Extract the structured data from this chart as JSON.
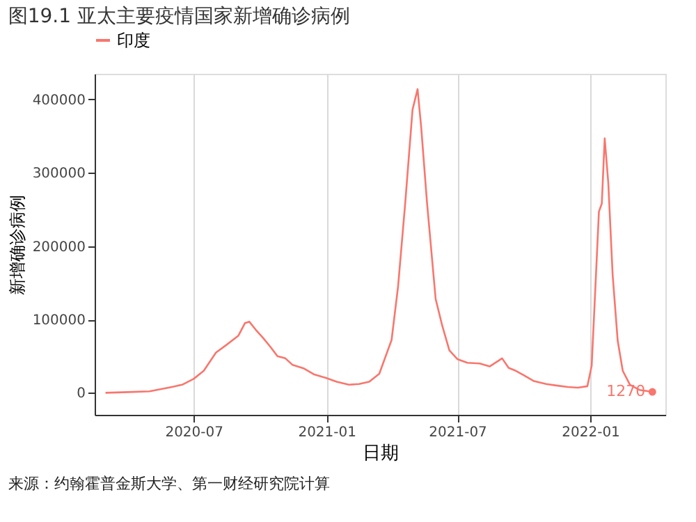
{
  "chart_data": {
    "type": "line",
    "title": "图19.1 亚太主要疫情国家新增确诊病例",
    "xlabel": "日期",
    "ylabel": "新增确诊病例",
    "x": [
      "2020-03-01",
      "2020-04-01",
      "2020-05-01",
      "2020-06-01",
      "2020-06-15",
      "2020-07-01",
      "2020-07-15",
      "2020-08-01",
      "2020-08-15",
      "2020-09-01",
      "2020-09-10",
      "2020-09-16",
      "2020-09-25",
      "2020-10-05",
      "2020-10-15",
      "2020-10-25",
      "2020-11-05",
      "2020-11-15",
      "2020-12-01",
      "2020-12-15",
      "2021-01-01",
      "2021-01-15",
      "2021-02-01",
      "2021-02-15",
      "2021-03-01",
      "2021-03-15",
      "2021-04-01",
      "2021-04-10",
      "2021-04-20",
      "2021-04-30",
      "2021-05-07",
      "2021-05-12",
      "2021-05-20",
      "2021-06-01",
      "2021-06-10",
      "2021-06-20",
      "2021-07-01",
      "2021-07-15",
      "2021-08-01",
      "2021-08-15",
      "2021-09-01",
      "2021-09-10",
      "2021-09-20",
      "2021-10-01",
      "2021-10-15",
      "2021-11-01",
      "2021-11-15",
      "2021-12-01",
      "2021-12-15",
      "2021-12-28",
      "2022-01-03",
      "2022-01-08",
      "2022-01-13",
      "2022-01-17",
      "2022-01-21",
      "2022-01-26",
      "2022-02-01",
      "2022-02-08",
      "2022-02-15",
      "2022-02-25",
      "2022-03-10",
      "2022-03-28"
    ],
    "series": [
      {
        "name": "印度",
        "color": "#f8766d",
        "values": [
          0,
          1000,
          2000,
          8000,
          11000,
          19000,
          30000,
          55000,
          65000,
          78000,
          95000,
          97000,
          86000,
          75000,
          63000,
          50000,
          47000,
          38000,
          33000,
          25000,
          20000,
          15000,
          11000,
          12000,
          15000,
          26000,
          72000,
          145000,
          260000,
          386000,
          414000,
          362000,
          260000,
          128000,
          92000,
          58000,
          46000,
          41000,
          40000,
          36000,
          47000,
          34000,
          30000,
          24000,
          16000,
          12000,
          10000,
          8000,
          7000,
          9000,
          37000,
          141000,
          247000,
          258000,
          347000,
          286000,
          161000,
          71000,
          30000,
          11000,
          4000,
          1270
        ]
      }
    ],
    "xlim": [
      "2020-02-15",
      "2022-04-15"
    ],
    "xticks": [
      {
        "value": "2020-07-01",
        "label": "2020-07"
      },
      {
        "value": "2021-01-01",
        "label": "2021-01"
      },
      {
        "value": "2021-07-01",
        "label": "2021-07"
      },
      {
        "value": "2022-01-01",
        "label": "2022-01"
      }
    ],
    "ylim": [
      -30000,
      435000
    ],
    "yticks": [
      0,
      100000,
      200000,
      300000,
      400000
    ],
    "grid": "x",
    "legend": "top",
    "marker": "none",
    "line_style": "solid",
    "annotations": [
      {
        "text": "1270",
        "x": "2022-03-28",
        "y": 1270
      },
      "来源：约翰霍普金斯大学、第一财经研究院计算"
    ]
  }
}
